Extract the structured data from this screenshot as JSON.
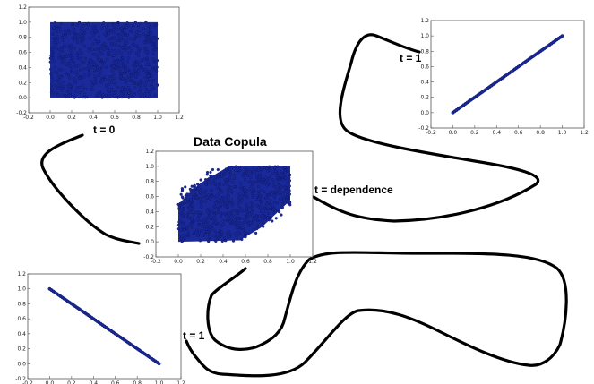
{
  "title": "Data Copula",
  "labels": {
    "t0": "t =  0",
    "t1_top": "t = 1",
    "t1_bottom": "t = 1",
    "dependence": "t = dependence"
  },
  "colors": {
    "points": "#1a2a9a",
    "points_dark": "#0b1460",
    "path": "#000000"
  },
  "chart_data": [
    {
      "type": "scatter",
      "id": "independence",
      "description_key": "t0",
      "pattern": "uniform",
      "x_ticks": [
        "-0.2",
        "0.0",
        "0.2",
        "0.4",
        "0.6",
        "0.8",
        "1.0",
        "1.2"
      ],
      "y_ticks": [
        "-0.2",
        "0.0",
        "0.2",
        "0.4",
        "0.6",
        "0.8",
        "1.0",
        "1.2"
      ],
      "xlim": [
        -0.2,
        1.2
      ],
      "ylim": [
        -0.2,
        1.2
      ]
    },
    {
      "type": "scatter",
      "id": "comonotone",
      "description_key": "t1_top",
      "pattern": "diagonal-up",
      "x_ticks": [
        "-0.2",
        "0.0",
        "0.2",
        "0.4",
        "0.6",
        "0.8",
        "1.0",
        "1.2"
      ],
      "y_ticks": [
        "-0.2",
        "0.0",
        "0.2",
        "0.4",
        "0.6",
        "0.8",
        "1.0",
        "1.2"
      ],
      "xlim": [
        -0.2,
        1.2
      ],
      "ylim": [
        -0.2,
        1.2
      ]
    },
    {
      "type": "scatter",
      "id": "data-copula",
      "description_key": "dependence",
      "pattern": "skewed",
      "x_ticks": [
        "-0.2",
        "0.0",
        "0.2",
        "0.4",
        "0.6",
        "0.8",
        "1.0",
        "1.2"
      ],
      "y_ticks": [
        "-0.2",
        "0.0",
        "0.2",
        "0.4",
        "0.6",
        "0.8",
        "1.0",
        "1.2"
      ],
      "xlim": [
        -0.2,
        1.2
      ],
      "ylim": [
        -0.2,
        1.2
      ]
    },
    {
      "type": "scatter",
      "id": "countermonotone",
      "description_key": "t1_bottom",
      "pattern": "diagonal-down",
      "x_ticks": [
        "-0.2",
        "0.0",
        "0.2",
        "0.4",
        "0.6",
        "0.8",
        "1.0",
        "1.2"
      ],
      "y_ticks": [
        "-0.2",
        "0.0",
        "0.2",
        "0.4",
        "0.6",
        "0.8",
        "1.0",
        "1.2"
      ],
      "xlim": [
        -0.2,
        1.2
      ],
      "ylim": [
        -0.2,
        1.2
      ]
    }
  ]
}
